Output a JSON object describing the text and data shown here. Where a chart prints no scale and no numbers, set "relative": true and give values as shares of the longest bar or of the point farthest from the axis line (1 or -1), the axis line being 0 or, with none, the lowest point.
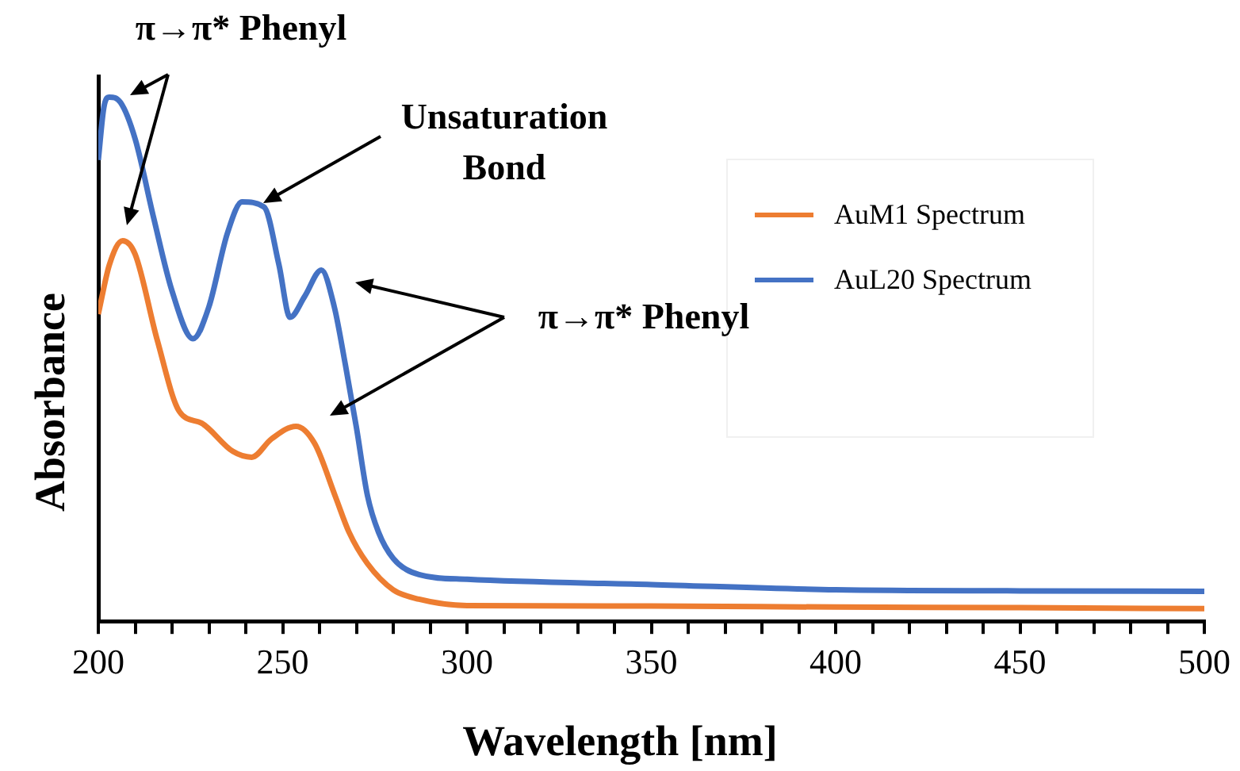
{
  "chart_data": {
    "type": "line",
    "xlabel": "Wavelength [nm]",
    "ylabel": "Absorbance",
    "relative": true,
    "xlim": [
      200,
      500
    ],
    "xticks": [
      200,
      {
        "value": 210,
        "label": null
      },
      {
        "value": 220,
        "label": null
      },
      {
        "value": 230,
        "label": null
      },
      {
        "value": 240,
        "label": null
      },
      250,
      {
        "value": 260,
        "label": null
      },
      {
        "value": 270,
        "label": null
      },
      {
        "value": 280,
        "label": null
      },
      {
        "value": 290,
        "label": null
      },
      300,
      {
        "value": 310,
        "label": null
      },
      {
        "value": 320,
        "label": null
      },
      {
        "value": 330,
        "label": null
      },
      {
        "value": 340,
        "label": null
      },
      350,
      {
        "value": 360,
        "label": null
      },
      {
        "value": 370,
        "label": null
      },
      {
        "value": 380,
        "label": null
      },
      {
        "value": 390,
        "label": null
      },
      400,
      {
        "value": 410,
        "label": null
      },
      {
        "value": 420,
        "label": null
      },
      {
        "value": 430,
        "label": null
      },
      {
        "value": 440,
        "label": null
      },
      450,
      {
        "value": 460,
        "label": null
      },
      {
        "value": 470,
        "label": null
      },
      {
        "value": 480,
        "label": null
      },
      {
        "value": 490,
        "label": null
      },
      500
    ],
    "legend": "top right",
    "marker": "none",
    "line_style": "solid",
    "grid": false,
    "series": [
      {
        "name": "AuM1 Spectrum",
        "color": "#ed7d31",
        "x": [
          200,
          203,
          206.6,
          210,
          216,
          222,
          228,
          236.5,
          241.6,
          247,
          253.6,
          258.7,
          264.3,
          268,
          273,
          280,
          287,
          300,
          350,
          400,
          450,
          500
        ],
        "values": [
          0.586,
          0.68,
          0.726,
          0.7,
          0.536,
          0.4,
          0.378,
          0.324,
          0.313,
          0.348,
          0.372,
          0.339,
          0.238,
          0.17,
          0.11,
          0.06,
          0.042,
          0.03,
          0.029,
          0.027,
          0.026,
          0.024
        ]
      },
      {
        "name": "AuL20 Spectrum",
        "color": "#4472c4",
        "x": [
          200,
          201.5,
          203,
          206,
          210,
          215,
          220,
          225.7,
          230,
          235,
          239,
          245,
          249,
          252,
          256,
          260.5,
          264,
          267,
          270,
          273,
          276,
          280,
          287,
          300,
          350,
          400,
          450,
          500
        ],
        "values": [
          0.88,
          0.98,
          1.0,
          0.99,
          0.92,
          0.77,
          0.63,
          0.539,
          0.6,
          0.74,
          0.8,
          0.79,
          0.68,
          0.58,
          0.62,
          0.67,
          0.6,
          0.49,
          0.37,
          0.24,
          0.17,
          0.12,
          0.089,
          0.08,
          0.07,
          0.06,
          0.058,
          0.057
        ]
      }
    ],
    "annotations": [
      "π→π* Phenyl",
      "Unsaturation Bond",
      "π→π* Phenyl"
    ]
  }
}
